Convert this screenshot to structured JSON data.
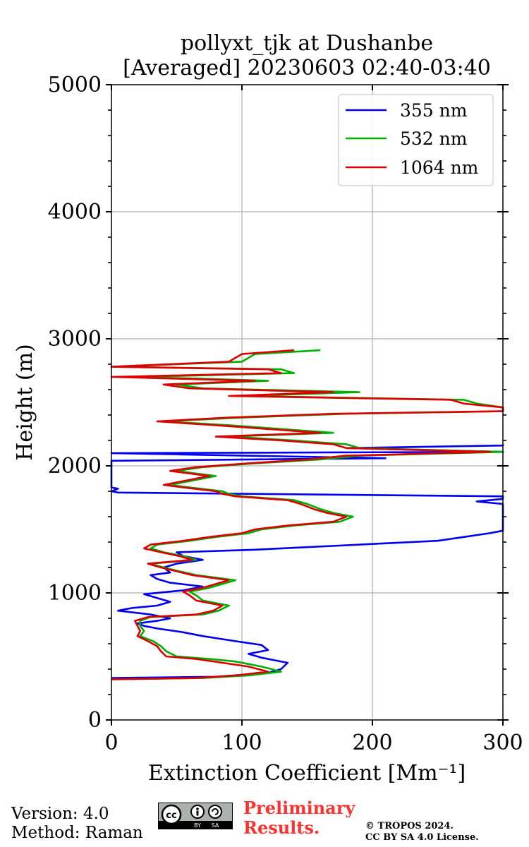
{
  "chart_data": {
    "type": "line",
    "title_line1": "pollyxt_tjk at Dushanbe",
    "title_line2": "[Averaged] 20230603 02:40-03:40",
    "xlabel": "Extinction Coefficient [Mm⁻¹]",
    "ylabel": "Height (m)",
    "xlim": [
      0,
      300
    ],
    "ylim": [
      0,
      5000
    ],
    "xticks": [
      0,
      100,
      200,
      300
    ],
    "yticks": [
      0,
      1000,
      2000,
      3000,
      4000,
      5000
    ],
    "legend_position": "top-right",
    "grid": true,
    "series": [
      {
        "name": "355 nm",
        "color": "#0000ee",
        "points": [
          [
            0,
            330
          ],
          [
            80,
            340
          ],
          [
            120,
            370
          ],
          [
            130,
            400
          ],
          [
            135,
            450
          ],
          [
            115,
            490
          ],
          [
            105,
            520
          ],
          [
            120,
            550
          ],
          [
            115,
            590
          ],
          [
            95,
            620
          ],
          [
            70,
            660
          ],
          [
            55,
            690
          ],
          [
            35,
            720
          ],
          [
            25,
            740
          ],
          [
            20,
            760
          ],
          [
            35,
            780
          ],
          [
            45,
            800
          ],
          [
            30,
            830
          ],
          [
            5,
            860
          ],
          [
            15,
            880
          ],
          [
            35,
            900
          ],
          [
            45,
            930
          ],
          [
            35,
            960
          ],
          [
            25,
            990
          ],
          [
            55,
            1020
          ],
          [
            70,
            1050
          ],
          [
            45,
            1080
          ],
          [
            35,
            1110
          ],
          [
            30,
            1140
          ],
          [
            45,
            1160
          ],
          [
            40,
            1200
          ],
          [
            50,
            1230
          ],
          [
            70,
            1260
          ],
          [
            55,
            1290
          ],
          [
            50,
            1320
          ],
          [
            110,
            1340
          ],
          [
            150,
            1360
          ],
          [
            190,
            1380
          ],
          [
            250,
            1410
          ],
          [
            270,
            1440
          ],
          [
            290,
            1470
          ],
          [
            300,
            1490
          ],
          [
            300,
            1700
          ],
          [
            280,
            1720
          ],
          [
            300,
            1740
          ],
          [
            300,
            1760
          ],
          [
            5,
            1790
          ],
          [
            0,
            1800
          ],
          [
            5,
            1820
          ],
          [
            0,
            1830
          ],
          [
            0,
            2040
          ],
          [
            210,
            2060
          ],
          [
            0,
            2100
          ],
          [
            300,
            2110
          ],
          [
            180,
            2140
          ],
          [
            300,
            2160
          ],
          [
            300,
            2170
          ]
        ]
      },
      {
        "name": "532 nm",
        "color": "#00b000",
        "points": [
          [
            0,
            320
          ],
          [
            70,
            330
          ],
          [
            105,
            350
          ],
          [
            130,
            380
          ],
          [
            115,
            420
          ],
          [
            95,
            460
          ],
          [
            75,
            480
          ],
          [
            50,
            500
          ],
          [
            42,
            540
          ],
          [
            38,
            580
          ],
          [
            32,
            620
          ],
          [
            22,
            660
          ],
          [
            25,
            700
          ],
          [
            22,
            740
          ],
          [
            22,
            780
          ],
          [
            30,
            810
          ],
          [
            70,
            830
          ],
          [
            82,
            860
          ],
          [
            90,
            900
          ],
          [
            70,
            940
          ],
          [
            65,
            980
          ],
          [
            60,
            1010
          ],
          [
            75,
            1040
          ],
          [
            85,
            1070
          ],
          [
            95,
            1100
          ],
          [
            65,
            1140
          ],
          [
            52,
            1170
          ],
          [
            40,
            1200
          ],
          [
            30,
            1230
          ],
          [
            65,
            1260
          ],
          [
            55,
            1290
          ],
          [
            40,
            1320
          ],
          [
            30,
            1350
          ],
          [
            35,
            1380
          ],
          [
            60,
            1410
          ],
          [
            80,
            1440
          ],
          [
            105,
            1470
          ],
          [
            115,
            1500
          ],
          [
            140,
            1530
          ],
          [
            175,
            1560
          ],
          [
            185,
            1600
          ],
          [
            170,
            1630
          ],
          [
            160,
            1660
          ],
          [
            150,
            1700
          ],
          [
            140,
            1730
          ],
          [
            100,
            1760
          ],
          [
            90,
            1780
          ],
          [
            85,
            1800
          ],
          [
            60,
            1830
          ],
          [
            45,
            1850
          ],
          [
            60,
            1880
          ],
          [
            80,
            1920
          ],
          [
            50,
            1960
          ],
          [
            70,
            1990
          ],
          [
            110,
            2020
          ],
          [
            160,
            2050
          ],
          [
            190,
            2080
          ],
          [
            300,
            2110
          ],
          [
            190,
            2140
          ],
          [
            180,
            2170
          ],
          [
            140,
            2200
          ],
          [
            90,
            2230
          ],
          [
            170,
            2260
          ],
          [
            130,
            2290
          ],
          [
            90,
            2320
          ],
          [
            40,
            2350
          ],
          [
            100,
            2380
          ],
          [
            180,
            2410
          ],
          [
            300,
            2430
          ],
          [
            300,
            2460
          ],
          [
            280,
            2490
          ],
          [
            270,
            2520
          ],
          [
            100,
            2550
          ],
          [
            190,
            2580
          ],
          [
            70,
            2610
          ],
          [
            50,
            2640
          ],
          [
            120,
            2670
          ],
          [
            20,
            2700
          ],
          [
            140,
            2730
          ],
          [
            130,
            2760
          ],
          [
            0,
            2780
          ],
          [
            100,
            2820
          ],
          [
            110,
            2880
          ],
          [
            160,
            2910
          ]
        ]
      },
      {
        "name": "1064 nm",
        "color": "#dd0000",
        "points": [
          [
            0,
            320
          ],
          [
            65,
            330
          ],
          [
            95,
            350
          ],
          [
            120,
            380
          ],
          [
            105,
            420
          ],
          [
            85,
            450
          ],
          [
            65,
            480
          ],
          [
            42,
            500
          ],
          [
            38,
            540
          ],
          [
            35,
            580
          ],
          [
            28,
            620
          ],
          [
            20,
            660
          ],
          [
            22,
            700
          ],
          [
            20,
            740
          ],
          [
            18,
            780
          ],
          [
            28,
            810
          ],
          [
            65,
            830
          ],
          [
            78,
            860
          ],
          [
            85,
            900
          ],
          [
            65,
            940
          ],
          [
            60,
            980
          ],
          [
            55,
            1010
          ],
          [
            70,
            1040
          ],
          [
            80,
            1070
          ],
          [
            90,
            1100
          ],
          [
            62,
            1140
          ],
          [
            50,
            1170
          ],
          [
            38,
            1200
          ],
          [
            28,
            1230
          ],
          [
            62,
            1260
          ],
          [
            52,
            1290
          ],
          [
            38,
            1320
          ],
          [
            25,
            1350
          ],
          [
            30,
            1380
          ],
          [
            55,
            1410
          ],
          [
            75,
            1440
          ],
          [
            100,
            1470
          ],
          [
            110,
            1500
          ],
          [
            135,
            1530
          ],
          [
            170,
            1560
          ],
          [
            180,
            1600
          ],
          [
            165,
            1630
          ],
          [
            155,
            1660
          ],
          [
            145,
            1700
          ],
          [
            135,
            1730
          ],
          [
            95,
            1760
          ],
          [
            85,
            1780
          ],
          [
            80,
            1800
          ],
          [
            55,
            1830
          ],
          [
            40,
            1850
          ],
          [
            55,
            1880
          ],
          [
            75,
            1920
          ],
          [
            45,
            1960
          ],
          [
            65,
            1990
          ],
          [
            105,
            2020
          ],
          [
            150,
            2050
          ],
          [
            180,
            2080
          ],
          [
            290,
            2110
          ],
          [
            180,
            2140
          ],
          [
            170,
            2170
          ],
          [
            130,
            2200
          ],
          [
            80,
            2230
          ],
          [
            160,
            2260
          ],
          [
            120,
            2290
          ],
          [
            80,
            2320
          ],
          [
            35,
            2350
          ],
          [
            90,
            2380
          ],
          [
            170,
            2410
          ],
          [
            300,
            2430
          ],
          [
            300,
            2460
          ],
          [
            270,
            2490
          ],
          [
            260,
            2520
          ],
          [
            90,
            2550
          ],
          [
            170,
            2580
          ],
          [
            60,
            2610
          ],
          [
            40,
            2640
          ],
          [
            110,
            2670
          ],
          [
            0,
            2700
          ],
          [
            130,
            2730
          ],
          [
            120,
            2760
          ],
          [
            0,
            2780
          ],
          [
            90,
            2820
          ],
          [
            100,
            2880
          ],
          [
            140,
            2910
          ]
        ]
      }
    ]
  },
  "footer": {
    "version": "Version: 4.0",
    "method": "Method: Raman",
    "preliminary_line1": "Preliminary",
    "preliminary_line2": "Results.",
    "copyright_line1": "© TROPOS 2024.",
    "copyright_line2": "CC BY SA 4.0 License.",
    "cc_text": "cc",
    "cc_by": "BY",
    "cc_sa": "SA"
  }
}
